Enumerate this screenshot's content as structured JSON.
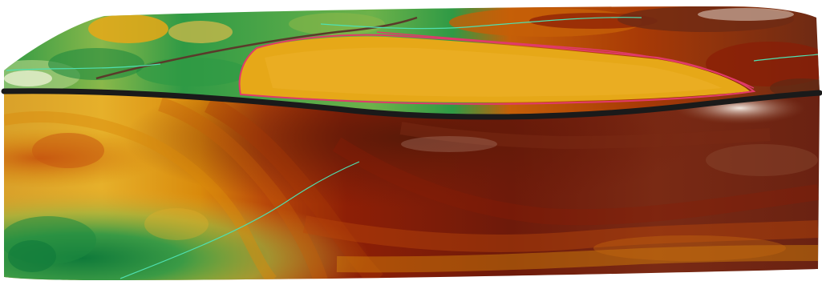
{
  "scene": {
    "type": "3d-terrain-surface",
    "background_color": "#ffffff",
    "color_ramp": [
      "#0f7a3a",
      "#2f9a45",
      "#6db24a",
      "#b8b84a",
      "#e6a818",
      "#d98a0c",
      "#c55f08",
      "#a83a06",
      "#8a1c05",
      "#6e1a0a",
      "#5e2a14"
    ],
    "colors": {
      "road": "#1a1a1a",
      "boundary": "#e03a6a",
      "watercourse": "#4fe0b0",
      "plateau": "#e6a818"
    },
    "layers": [
      "terrain-surface",
      "hillshade-bands",
      "watercourses",
      "site-boundary",
      "road"
    ]
  }
}
